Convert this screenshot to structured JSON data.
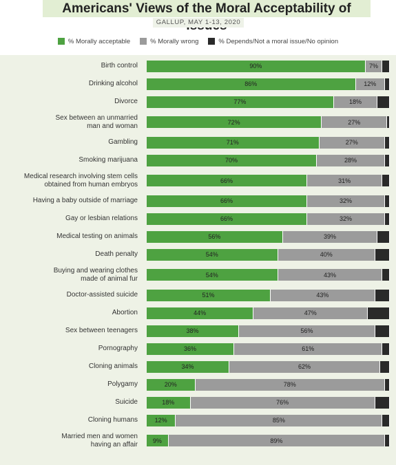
{
  "chart_data": {
    "type": "stacked-bar-horizontal",
    "title": "Americans' Views of the Moral Acceptability of Issues",
    "subtitle": "GALLUP, MAY 1-13, 2020",
    "xlim": [
      0,
      100
    ],
    "categories": [
      "Birth control",
      "Drinking alcohol",
      "Divorce",
      "Sex between an unmarried\nman and woman",
      "Gambling",
      "Smoking marijuana",
      "Medical research involving stem cells\nobtained from human embryos",
      "Having a baby outside of marriage",
      "Gay or lesbian relations",
      "Medical testing on animals",
      "Death penalty",
      "Buying and wearing clothes\nmade of animal fur",
      "Doctor-assisted suicide",
      "Abortion",
      "Sex between teenagers",
      "Pornography",
      "Cloning animals",
      "Polygamy",
      "Suicide",
      "Cloning humans",
      "Married men and women\nhaving an affair"
    ],
    "series": [
      {
        "name": "% Morally acceptable",
        "color": "#4ea241",
        "values": [
          90,
          86,
          77,
          72,
          71,
          70,
          66,
          66,
          66,
          56,
          54,
          54,
          51,
          44,
          38,
          36,
          34,
          20,
          18,
          12,
          9
        ],
        "value_labels": [
          "90%",
          "86%",
          "77%",
          "72%",
          "71%",
          "70%",
          "66%",
          "66%",
          "66%",
          "56%",
          "54%",
          "54%",
          "51%",
          "44%",
          "38%",
          "36%",
          "34%",
          "20%",
          "18%",
          "12%",
          "9%"
        ]
      },
      {
        "name": "% Morally wrong",
        "color": "#9b9b9b",
        "values": [
          7,
          12,
          18,
          27,
          27,
          28,
          31,
          32,
          32,
          39,
          40,
          43,
          43,
          47,
          56,
          61,
          62,
          78,
          76,
          85,
          89
        ],
        "value_labels": [
          "7%",
          "12%",
          "18%",
          "27%",
          "27%",
          "28%",
          "31%",
          "32%",
          "32%",
          "39%",
          "40%",
          "43%",
          "43%",
          "47%",
          "56%",
          "61%",
          "62%",
          "78%",
          "76%",
          "85%",
          "89%"
        ]
      },
      {
        "name": "% Depends/Not a moral issue/No opinion",
        "color": "#2a2a2a",
        "values": [
          3,
          2,
          5,
          1,
          2,
          2,
          3,
          2,
          2,
          5,
          6,
          3,
          6,
          9,
          6,
          3,
          4,
          2,
          6,
          3,
          2
        ]
      }
    ]
  }
}
